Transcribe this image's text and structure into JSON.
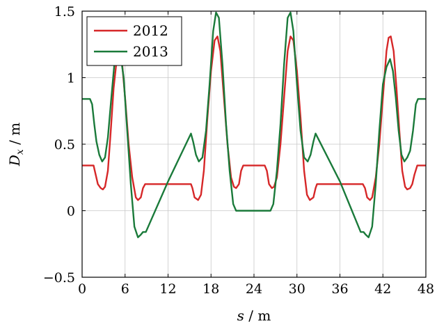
{
  "chart_data": {
    "type": "line",
    "xlabel": "s / m",
    "ylabel": "D_x / m",
    "xlim": [
      0,
      48
    ],
    "ylim": [
      -0.5,
      1.5
    ],
    "grid": true,
    "legend_position": "top-left",
    "xticks": [
      0,
      6,
      12,
      18,
      24,
      30,
      36,
      42,
      48
    ],
    "xtick_labels": [
      "0",
      "6",
      "12",
      "18",
      "24",
      "30",
      "36",
      "42",
      "48"
    ],
    "yticks": [
      -0.5,
      0,
      0.5,
      1,
      1.5
    ],
    "ytick_labels": [
      "−0.5",
      "0",
      "0.5",
      "1",
      "1.5"
    ],
    "series": [
      {
        "name": "2012",
        "color": "#d62728",
        "points": [
          [
            0,
            0.34
          ],
          [
            1.2,
            0.34
          ],
          [
            1.6,
            0.34
          ],
          [
            1.9,
            0.27
          ],
          [
            2.2,
            0.2
          ],
          [
            2.6,
            0.17
          ],
          [
            2.9,
            0.16
          ],
          [
            3.2,
            0.18
          ],
          [
            3.6,
            0.3
          ],
          [
            4.0,
            0.6
          ],
          [
            4.4,
            0.92
          ],
          [
            4.8,
            1.12
          ],
          [
            5.2,
            1.2
          ],
          [
            5.6,
            1.1
          ],
          [
            6.0,
            0.85
          ],
          [
            6.5,
            0.5
          ],
          [
            7.0,
            0.25
          ],
          [
            7.5,
            0.1
          ],
          [
            7.8,
            0.08
          ],
          [
            8.2,
            0.1
          ],
          [
            8.5,
            0.17
          ],
          [
            8.8,
            0.2
          ],
          [
            10.0,
            0.2
          ],
          [
            12.0,
            0.2
          ],
          [
            14.0,
            0.2
          ],
          [
            15.2,
            0.2
          ],
          [
            15.4,
            0.17
          ],
          [
            15.7,
            0.1
          ],
          [
            16.2,
            0.08
          ],
          [
            16.6,
            0.12
          ],
          [
            17.0,
            0.3
          ],
          [
            17.5,
            0.7
          ],
          [
            18.0,
            1.05
          ],
          [
            18.5,
            1.28
          ],
          [
            18.9,
            1.31
          ],
          [
            19.3,
            1.2
          ],
          [
            19.8,
            0.85
          ],
          [
            20.3,
            0.5
          ],
          [
            20.8,
            0.25
          ],
          [
            21.2,
            0.18
          ],
          [
            21.5,
            0.17
          ],
          [
            21.9,
            0.2
          ],
          [
            22.2,
            0.3
          ],
          [
            22.5,
            0.34
          ],
          [
            24.0,
            0.34
          ],
          [
            25.5,
            0.34
          ],
          [
            25.8,
            0.3
          ],
          [
            26.1,
            0.2
          ],
          [
            26.5,
            0.17
          ],
          [
            26.8,
            0.18
          ],
          [
            27.2,
            0.25
          ],
          [
            27.7,
            0.5
          ],
          [
            28.2,
            0.85
          ],
          [
            28.7,
            1.2
          ],
          [
            29.1,
            1.31
          ],
          [
            29.5,
            1.28
          ],
          [
            30.0,
            1.05
          ],
          [
            30.5,
            0.7
          ],
          [
            31.0,
            0.3
          ],
          [
            31.4,
            0.12
          ],
          [
            31.8,
            0.08
          ],
          [
            32.3,
            0.1
          ],
          [
            32.6,
            0.17
          ],
          [
            32.8,
            0.2
          ],
          [
            34.0,
            0.2
          ],
          [
            36.0,
            0.2
          ],
          [
            38.0,
            0.2
          ],
          [
            39.2,
            0.2
          ],
          [
            39.5,
            0.17
          ],
          [
            39.8,
            0.1
          ],
          [
            40.2,
            0.08
          ],
          [
            40.5,
            0.1
          ],
          [
            41.0,
            0.25
          ],
          [
            41.5,
            0.5
          ],
          [
            42.0,
            0.85
          ],
          [
            42.5,
            1.2
          ],
          [
            42.8,
            1.3
          ],
          [
            43.1,
            1.31
          ],
          [
            43.5,
            1.2
          ],
          [
            43.9,
            0.92
          ],
          [
            44.3,
            0.6
          ],
          [
            44.7,
            0.3
          ],
          [
            45.1,
            0.18
          ],
          [
            45.4,
            0.16
          ],
          [
            45.8,
            0.17
          ],
          [
            46.1,
            0.2
          ],
          [
            46.4,
            0.27
          ],
          [
            46.8,
            0.34
          ],
          [
            48,
            0.34
          ]
        ]
      },
      {
        "name": "2013",
        "color": "#1a7a3a",
        "points": [
          [
            0,
            0.84
          ],
          [
            1.1,
            0.84
          ],
          [
            1.4,
            0.8
          ],
          [
            1.7,
            0.65
          ],
          [
            2.0,
            0.52
          ],
          [
            2.4,
            0.42
          ],
          [
            2.8,
            0.37
          ],
          [
            3.2,
            0.4
          ],
          [
            3.6,
            0.55
          ],
          [
            4.0,
            0.8
          ],
          [
            4.5,
            1.1
          ],
          [
            4.9,
            1.18
          ],
          [
            5.3,
            1.2
          ],
          [
            5.8,
            1.0
          ],
          [
            6.3,
            0.6
          ],
          [
            6.8,
            0.2
          ],
          [
            7.3,
            -0.12
          ],
          [
            7.8,
            -0.2
          ],
          [
            8.2,
            -0.18
          ],
          [
            8.5,
            -0.16
          ],
          [
            8.9,
            -0.16
          ],
          [
            12.0,
            0.22
          ],
          [
            15.2,
            0.58
          ],
          [
            15.5,
            0.52
          ],
          [
            15.9,
            0.42
          ],
          [
            16.3,
            0.37
          ],
          [
            16.8,
            0.4
          ],
          [
            17.3,
            0.6
          ],
          [
            17.8,
            0.95
          ],
          [
            18.3,
            1.35
          ],
          [
            18.7,
            1.49
          ],
          [
            19.1,
            1.45
          ],
          [
            19.6,
            1.1
          ],
          [
            20.1,
            0.65
          ],
          [
            20.6,
            0.3
          ],
          [
            21.1,
            0.05
          ],
          [
            21.5,
            0.0
          ],
          [
            24.0,
            0.0
          ],
          [
            26.3,
            0.0
          ],
          [
            26.7,
            0.05
          ],
          [
            27.2,
            0.3
          ],
          [
            27.7,
            0.65
          ],
          [
            28.2,
            1.1
          ],
          [
            28.7,
            1.45
          ],
          [
            29.1,
            1.49
          ],
          [
            29.5,
            1.35
          ],
          [
            30.0,
            0.95
          ],
          [
            30.5,
            0.6
          ],
          [
            31.0,
            0.4
          ],
          [
            31.5,
            0.37
          ],
          [
            31.9,
            0.42
          ],
          [
            32.3,
            0.52
          ],
          [
            32.6,
            0.58
          ],
          [
            36.0,
            0.22
          ],
          [
            38.9,
            -0.16
          ],
          [
            39.3,
            -0.16
          ],
          [
            39.6,
            -0.18
          ],
          [
            40.0,
            -0.2
          ],
          [
            40.5,
            -0.12
          ],
          [
            41.0,
            0.2
          ],
          [
            41.5,
            0.6
          ],
          [
            42.0,
            0.95
          ],
          [
            42.5,
            1.08
          ],
          [
            43.0,
            1.14
          ],
          [
            43.4,
            1.05
          ],
          [
            43.8,
            0.85
          ],
          [
            44.2,
            0.6
          ],
          [
            44.6,
            0.42
          ],
          [
            45.0,
            0.37
          ],
          [
            45.4,
            0.4
          ],
          [
            45.8,
            0.45
          ],
          [
            46.2,
            0.6
          ],
          [
            46.6,
            0.8
          ],
          [
            46.9,
            0.84
          ],
          [
            48,
            0.84
          ]
        ]
      }
    ]
  }
}
